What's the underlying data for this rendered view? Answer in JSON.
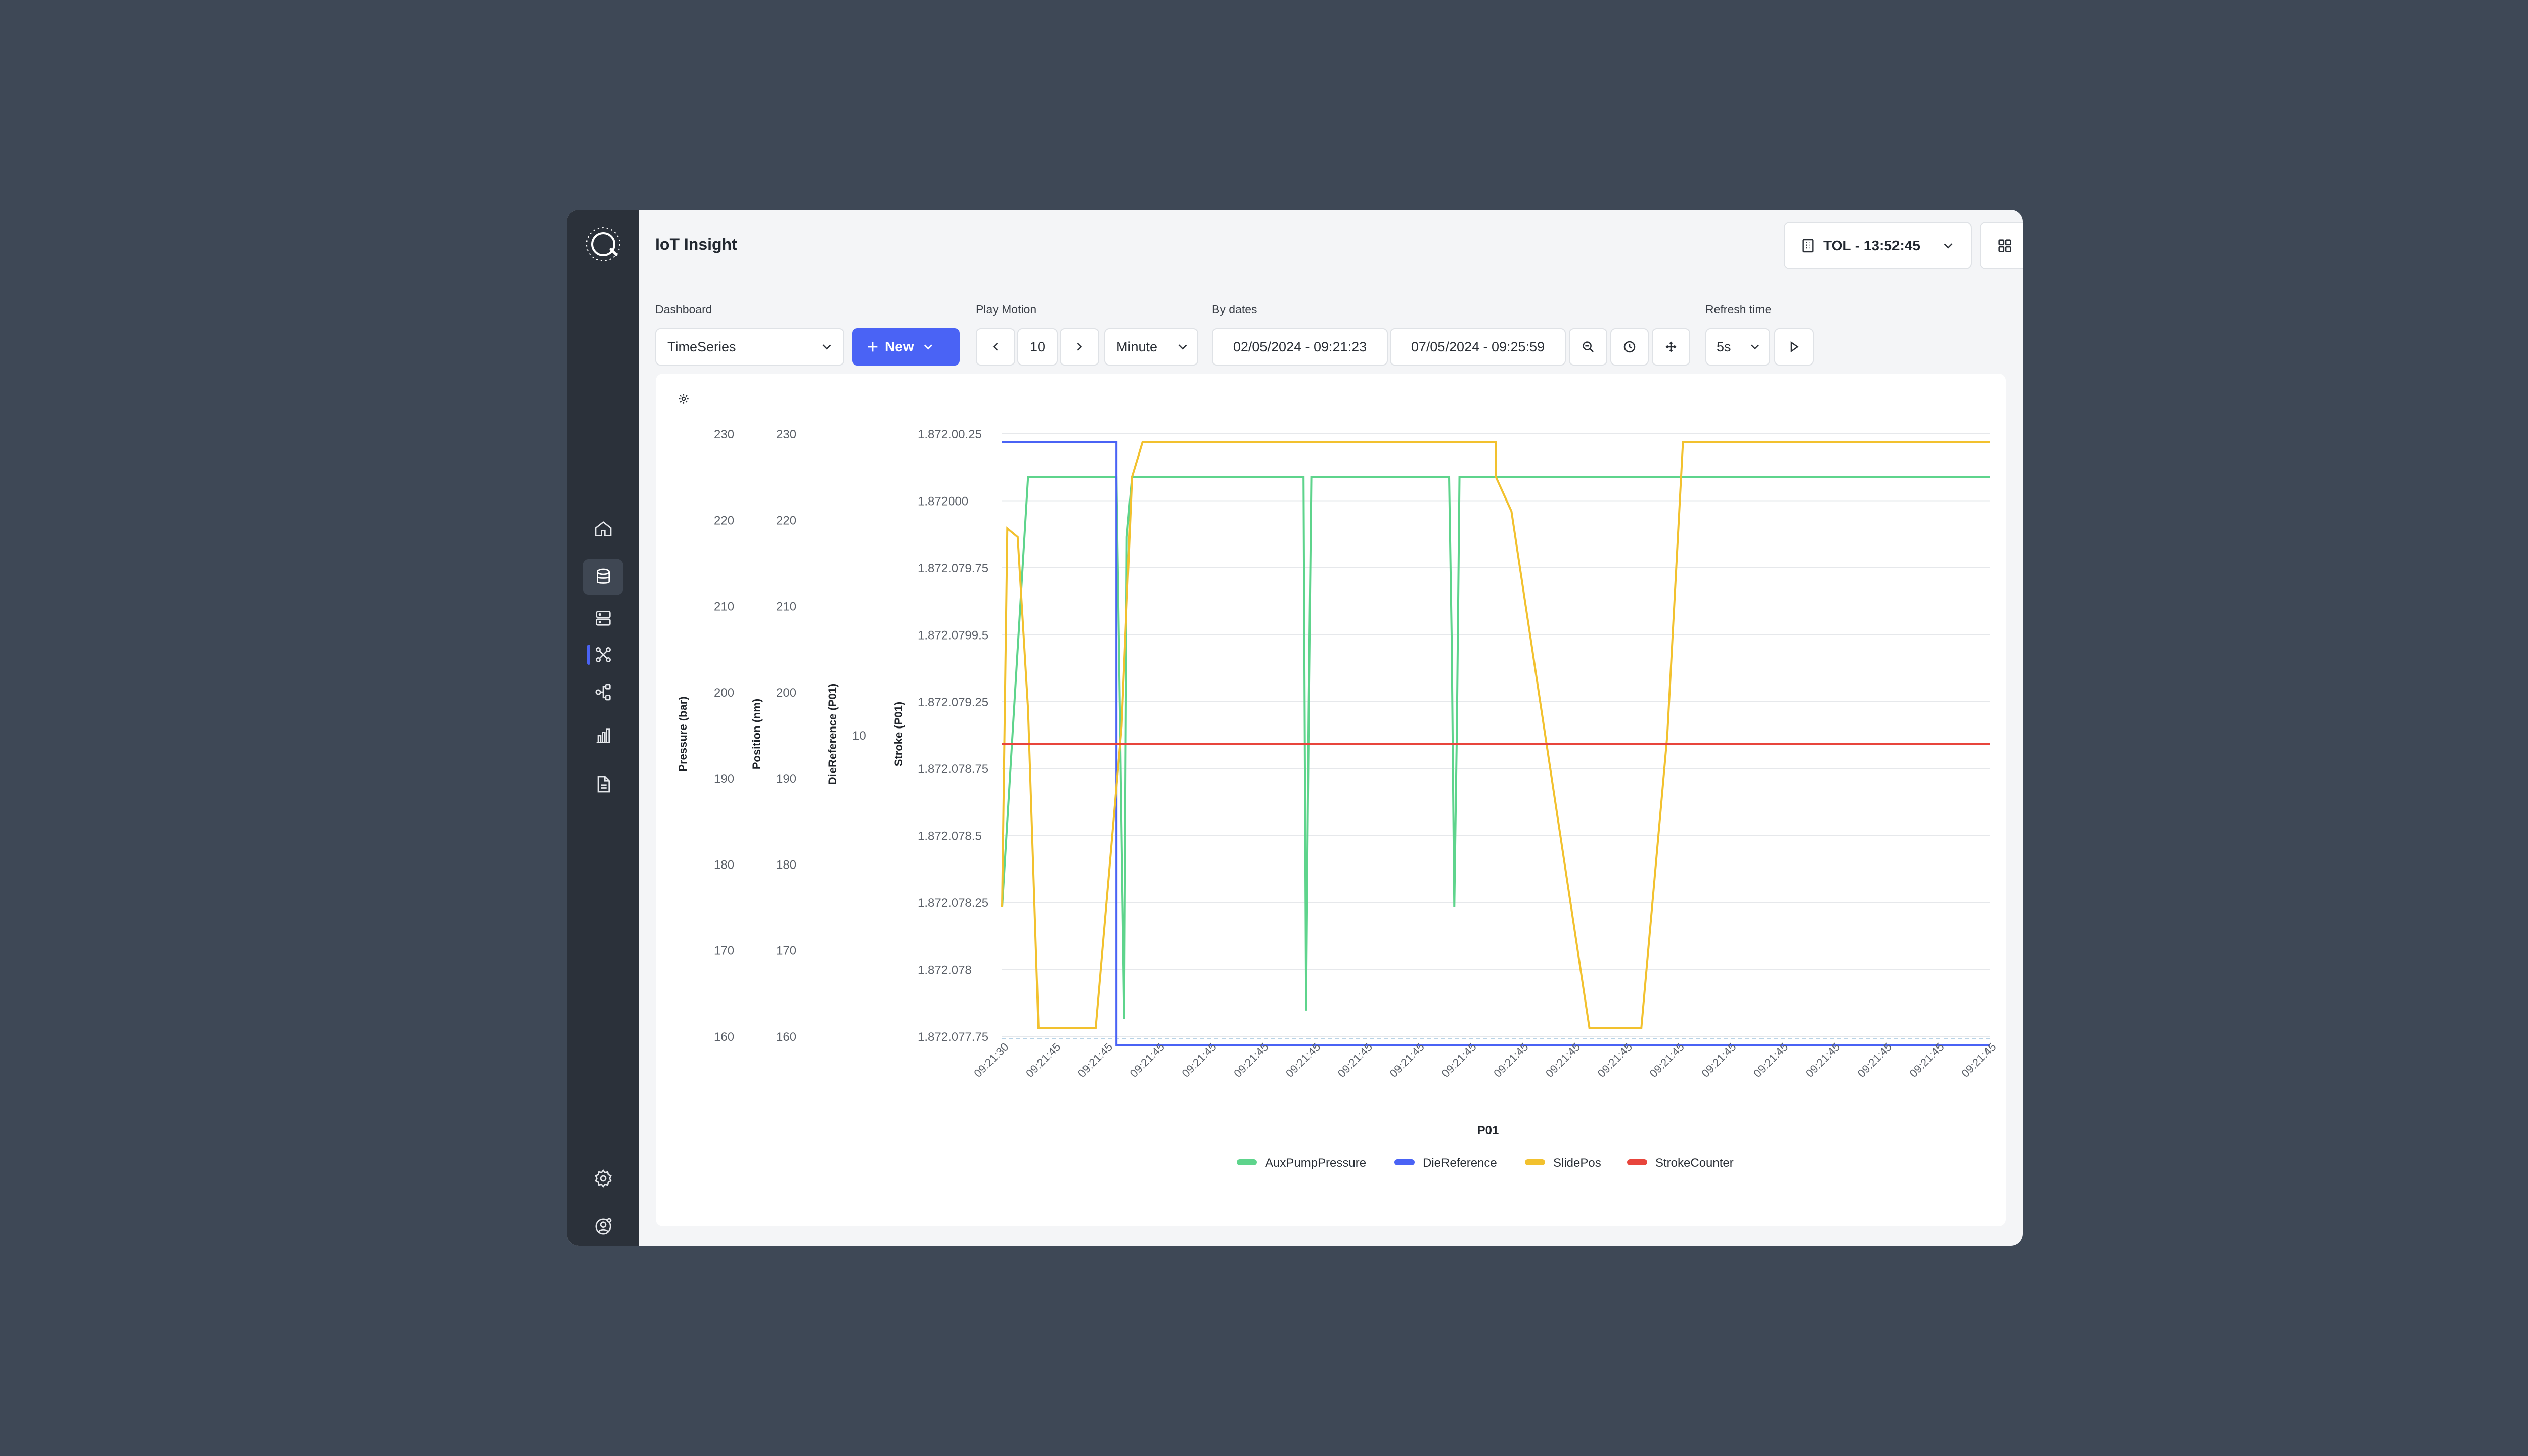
{
  "app": {
    "title": "IoT Insight"
  },
  "header": {
    "tol_label": "TOL - 13:52:45"
  },
  "controls": {
    "dashboard_label": "Dashboard",
    "dashboard_value": "TimeSeries",
    "new_label": "New",
    "play_label": "Play Motion",
    "play_value": "10",
    "unit_value": "Minute",
    "dates_label": "By dates",
    "date_from": "02/05/2024 - 09:21:23",
    "date_to": "07/05/2024 - 09:25:59",
    "refresh_label": "Refresh time",
    "refresh_value": "5s"
  },
  "chart_data": {
    "type": "line",
    "xlabel": "P01",
    "x_ticks": [
      "09:21:30",
      "09:21:45",
      "09:21:45",
      "09:21:45",
      "09:21:45",
      "09:21:45",
      "09:21:45",
      "09:21:45",
      "09:21:45",
      "09:21:45",
      "09:21:45",
      "09:21:45",
      "09:21:45",
      "09:21:45",
      "09:21:45",
      "09:21:45",
      "09:21:45",
      "09:21:45",
      "09:21:45",
      "09:21:45"
    ],
    "axes": [
      {
        "label": "Pressure (bar)",
        "ticks": [
          "230",
          "220",
          "210",
          "200",
          "190",
          "180",
          "170",
          "160"
        ],
        "ylim": [
          160,
          230
        ]
      },
      {
        "label": "Position (nm)",
        "ticks": [
          "230",
          "220",
          "210",
          "200",
          "190",
          "180",
          "170",
          "160"
        ],
        "ylim": [
          160,
          230
        ]
      },
      {
        "label": "DieReference (P01)",
        "ticks": [
          "10"
        ]
      },
      {
        "label": "Stroke (P01)",
        "ticks": [
          "1.872.00.25",
          "1.872000",
          "1.872.079.75",
          "1.872.0799.5",
          "1.872.079.25",
          "1.872.078.75",
          "1.872.078.5",
          "1.872.078.25",
          "1.872.078",
          "1.872.077.75"
        ]
      }
    ],
    "legend_position": "bottom",
    "series": [
      {
        "name": "AuxPumpPressure",
        "color": "#5ed48c",
        "x": [
          0,
          0.5,
          1,
          1.3,
          1.5,
          1.8,
          2,
          2.2,
          2.25,
          2.35,
          2.4,
          2.5,
          3,
          4,
          5,
          5.8,
          5.85,
          5.9,
          5.95,
          6,
          6.5,
          7,
          7.5,
          8,
          8.6,
          8.65,
          8.7,
          8.75,
          8.8,
          9,
          10,
          11,
          12,
          13,
          14,
          15,
          16,
          17,
          18,
          19
        ],
        "y": [
          175,
          225,
          225,
          225,
          225,
          225,
          225,
          225,
          205,
          162,
          218,
          225,
          225,
          225,
          225,
          225,
          163,
          198,
          225,
          225,
          225,
          225,
          225,
          225,
          225,
          206,
          175,
          196,
          225,
          225,
          225,
          225,
          225,
          225,
          225,
          225,
          225,
          225,
          225,
          225
        ]
      },
      {
        "name": "DieReference",
        "color": "#4a63f5",
        "x": [
          0,
          2.2,
          2.2,
          19
        ],
        "y": [
          229,
          229,
          159,
          159
        ]
      },
      {
        "name": "SlidePos",
        "color": "#f2c12e",
        "x": [
          0,
          0.1,
          0.3,
          0.5,
          0.7,
          1.2,
          1.8,
          2.3,
          2.5,
          2.7,
          9.5,
          9.5,
          9.8,
          11.3,
          11.5,
          12.1,
          12.3,
          12.8,
          13.1,
          19
        ],
        "y": [
          175,
          219,
          218,
          198,
          161,
          161,
          161,
          196,
          225,
          229,
          229,
          225,
          221,
          161,
          161,
          161,
          161,
          195,
          229,
          229
        ]
      },
      {
        "name": "StrokeCounter",
        "color": "#e8453c",
        "x": [
          0,
          19
        ],
        "y": [
          194,
          194
        ]
      }
    ]
  }
}
